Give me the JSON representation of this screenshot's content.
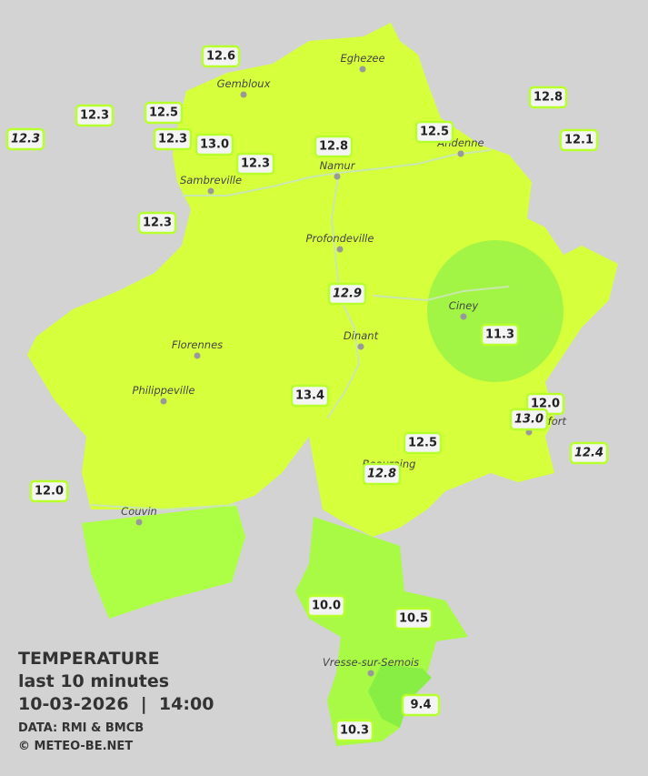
{
  "legend": {
    "title": "TEMPERATURE",
    "subtitle": "last 10 minutes",
    "datetime": "10-03-2026  |  14:00",
    "source": "DATA: RMI & BMCB",
    "copyright": "© METEO-BE.NET"
  },
  "cities": [
    {
      "name": "Eghezee"
    },
    {
      "name": "Gembloux"
    },
    {
      "name": "Andenne"
    },
    {
      "name": "Namur"
    },
    {
      "name": "Sambreville"
    },
    {
      "name": "Profondeville"
    },
    {
      "name": "Ciney"
    },
    {
      "name": "Dinant"
    },
    {
      "name": "Florennes"
    },
    {
      "name": "Philippeville"
    },
    {
      "name": "Beauraing"
    },
    {
      "name": "Rochefort"
    },
    {
      "name": "Couvin"
    },
    {
      "name": "Vresse-sur-Semois"
    }
  ],
  "stations": [
    {
      "label": "12.6",
      "italic": false
    },
    {
      "label": "12.8",
      "italic": false
    },
    {
      "label": "12.3",
      "italic": false
    },
    {
      "label": "12.5",
      "italic": false
    },
    {
      "label": "12.3",
      "italic": true
    },
    {
      "label": "12.3",
      "italic": false
    },
    {
      "label": "13.0",
      "italic": false
    },
    {
      "label": "12.8",
      "italic": false
    },
    {
      "label": "12.5",
      "italic": false
    },
    {
      "label": "12.1",
      "italic": false
    },
    {
      "label": "12.3",
      "italic": false
    },
    {
      "label": "12.3",
      "italic": false
    },
    {
      "label": "12.9",
      "italic": true
    },
    {
      "label": "11.3",
      "italic": false
    },
    {
      "label": "13.4",
      "italic": false
    },
    {
      "label": "12.0",
      "italic": false
    },
    {
      "label": "13.0",
      "italic": true
    },
    {
      "label": "12.5",
      "italic": false
    },
    {
      "label": "12.4",
      "italic": true
    },
    {
      "label": "12.8",
      "italic": true
    },
    {
      "label": "12.0",
      "italic": false
    },
    {
      "label": "10.0",
      "italic": false
    },
    {
      "label": "10.5",
      "italic": false
    },
    {
      "label": "9.4",
      "italic": false
    },
    {
      "label": "10.3",
      "italic": false
    }
  ]
}
